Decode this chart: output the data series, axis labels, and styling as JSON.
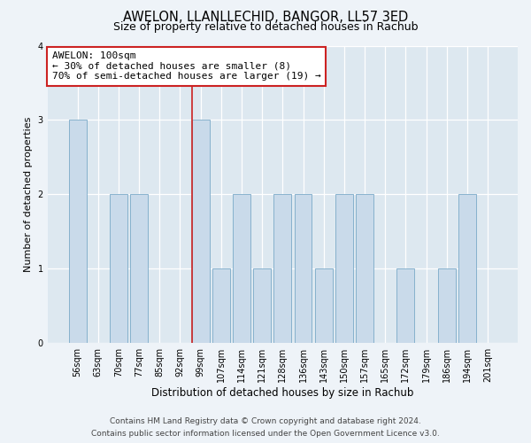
{
  "title": "AWELON, LLANLLECHID, BANGOR, LL57 3ED",
  "subtitle": "Size of property relative to detached houses in Rachub",
  "xlabel": "Distribution of detached houses by size in Rachub",
  "ylabel": "Number of detached properties",
  "categories": [
    "56sqm",
    "63sqm",
    "70sqm",
    "77sqm",
    "85sqm",
    "92sqm",
    "99sqm",
    "107sqm",
    "114sqm",
    "121sqm",
    "128sqm",
    "136sqm",
    "143sqm",
    "150sqm",
    "157sqm",
    "165sqm",
    "172sqm",
    "179sqm",
    "186sqm",
    "194sqm",
    "201sqm"
  ],
  "values": [
    3,
    0,
    2,
    2,
    0,
    0,
    3,
    1,
    2,
    1,
    2,
    2,
    1,
    2,
    2,
    0,
    1,
    0,
    1,
    2,
    0
  ],
  "bar_color": "#c9daea",
  "bar_edge_color": "#7aaac8",
  "highlight_index": 6,
  "highlight_line_color": "#cc2222",
  "ylim": [
    0,
    4
  ],
  "yticks": [
    0,
    1,
    2,
    3,
    4
  ],
  "annotation_title": "AWELON: 100sqm",
  "annotation_line1": "← 30% of detached houses are smaller (8)",
  "annotation_line2": "70% of semi-detached houses are larger (19) →",
  "annotation_box_edgecolor": "#cc2222",
  "annotation_box_facecolor": "#ffffff",
  "footer_line1": "Contains HM Land Registry data © Crown copyright and database right 2024.",
  "footer_line2": "Contains public sector information licensed under the Open Government Licence v3.0.",
  "title_fontsize": 10.5,
  "subtitle_fontsize": 9,
  "xlabel_fontsize": 8.5,
  "ylabel_fontsize": 8,
  "tick_fontsize": 7,
  "annotation_fontsize": 8,
  "footer_fontsize": 6.5,
  "background_color": "#eef3f8",
  "grid_color": "#ffffff",
  "plot_bg_color": "#dde8f0"
}
